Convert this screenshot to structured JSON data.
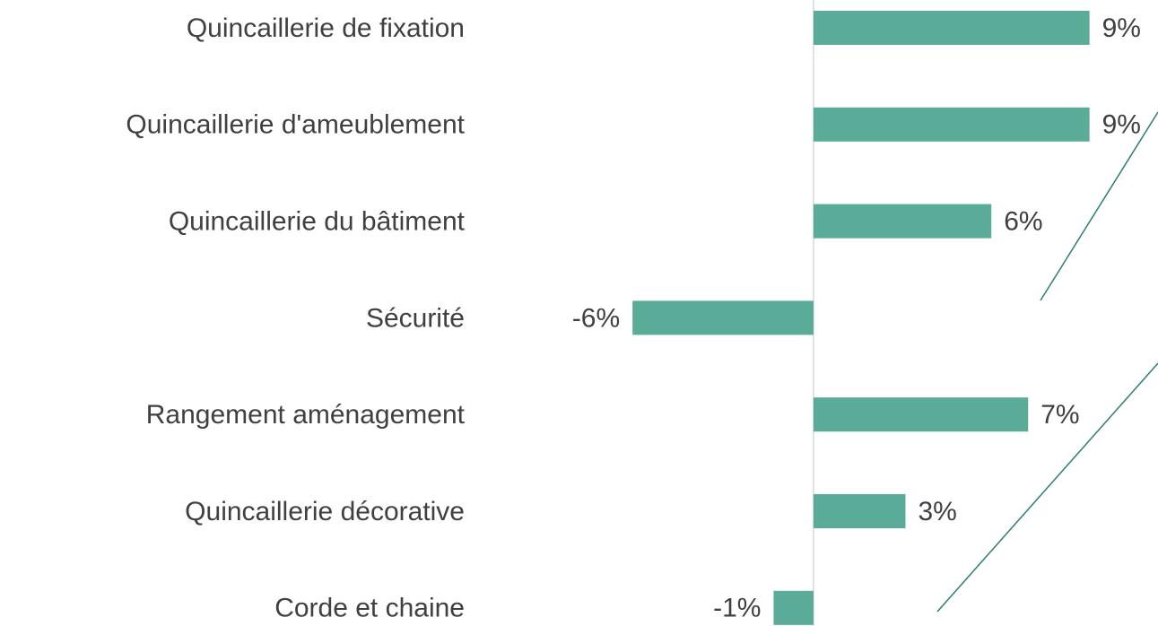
{
  "chart_data": {
    "type": "barh",
    "categories": [
      "Quincaillerie de fixation",
      "Quincaillerie d'ameublement",
      "Quincaillerie du bâtiment",
      "Sécurité",
      "Rangement aménagement",
      "Quincaillerie décorative",
      "Corde et chaine"
    ],
    "values": [
      9.0,
      9.0,
      5.8,
      -5.9,
      7.0,
      3.0,
      -1.3
    ],
    "value_labels": [
      "9%",
      "9%",
      "6%",
      "-6%",
      "7%",
      "3%",
      "-1%"
    ],
    "color": "#5aab97",
    "xlim": [
      -10,
      11
    ]
  }
}
